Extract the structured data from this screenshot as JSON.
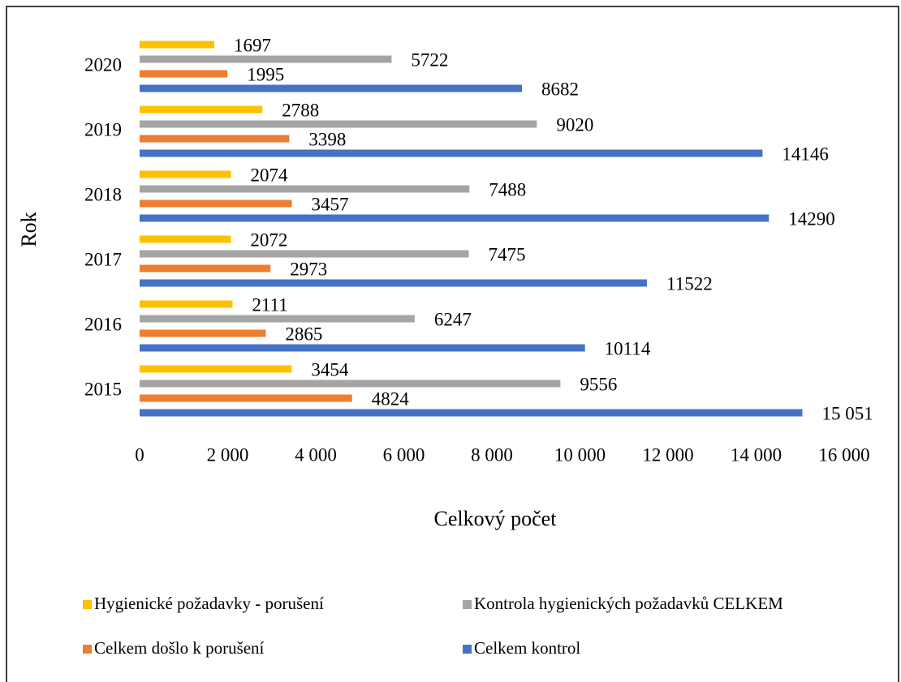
{
  "chart_data": {
    "type": "hbar",
    "categories": [
      "2015",
      "2016",
      "2017",
      "2018",
      "2019",
      "2020"
    ],
    "series": [
      {
        "name": "Hygienické požadavky - porušení",
        "color": "#ffc000",
        "values": [
          3454,
          2111,
          2072,
          2074,
          2788,
          1697
        ]
      },
      {
        "name": "Kontrola hygienických požadavků CELKEM",
        "color": "#a5a5a5",
        "values": [
          9556,
          6247,
          7475,
          7488,
          9020,
          5722
        ]
      },
      {
        "name": "Celkem došlo k porušení",
        "color": "#ed7d31",
        "values": [
          4824,
          2865,
          2973,
          3457,
          3398,
          1995
        ]
      },
      {
        "name": "Celkem kontrol",
        "color": "#4472c4",
        "values": [
          15051,
          10114,
          11522,
          14290,
          14146,
          8682
        ],
        "value_labels": [
          "15 051",
          "10114",
          "11522",
          "14290",
          "14146",
          "8682"
        ]
      }
    ],
    "xlabel": "Celkový počet",
    "ylabel": "Rok",
    "xlim": [
      0,
      16000
    ],
    "xticks": [
      0,
      {
        "value": 2000,
        "label": "2 000"
      },
      {
        "value": 4000,
        "label": "4 000"
      },
      {
        "value": 6000,
        "label": "6 000"
      },
      {
        "value": 8000,
        "label": "8 000"
      },
      {
        "value": 10000,
        "label": "10 000"
      },
      {
        "value": 12000,
        "label": "12 000"
      },
      {
        "value": 14000,
        "label": "14 000"
      },
      {
        "value": 16000,
        "label": "16 000"
      }
    ],
    "grid": false,
    "legend": "bottom"
  }
}
